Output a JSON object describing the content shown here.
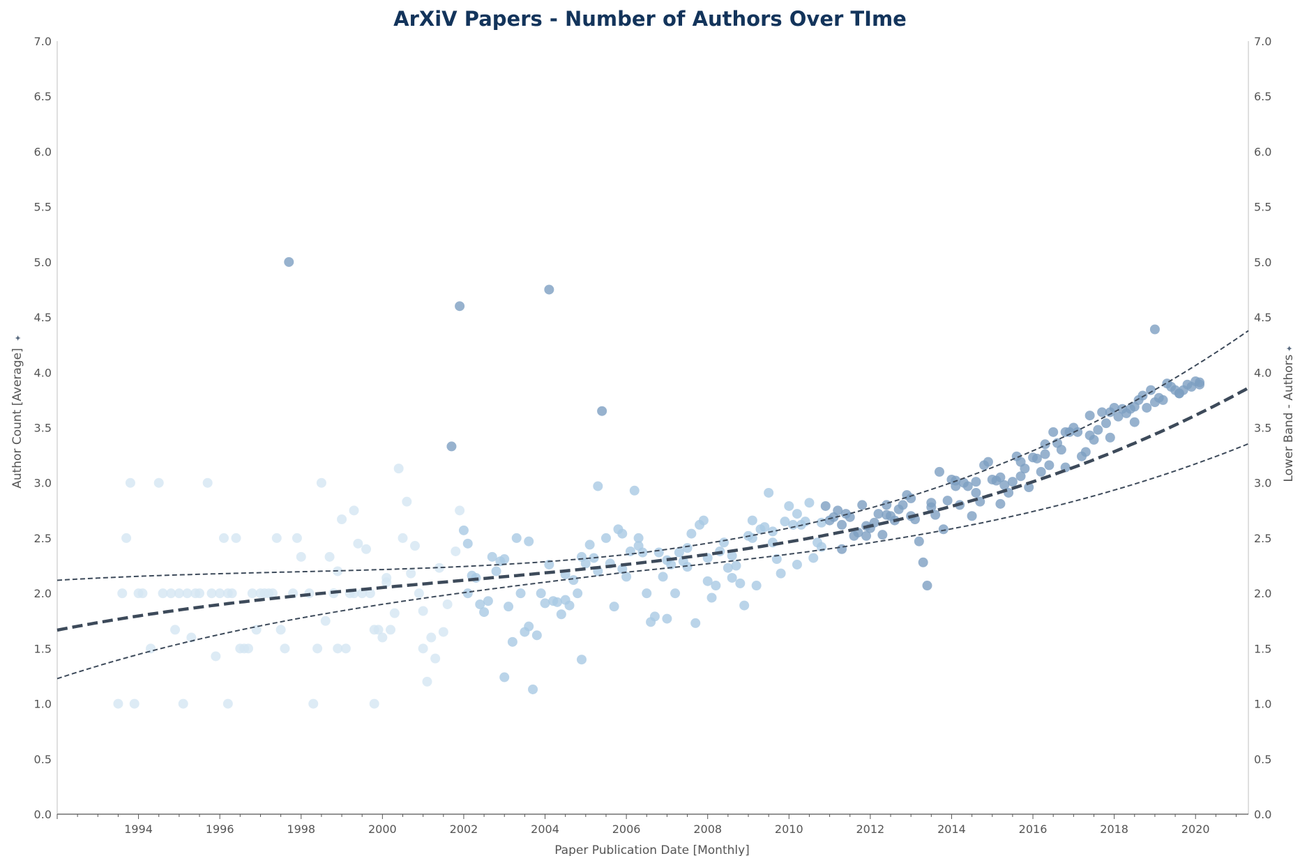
{
  "chart_data": {
    "type": "scatter",
    "title": "ArXiV Papers - Number of Authors Over TIme",
    "xlabel": "Paper Publication Date [Monthly]",
    "ylabel": "Author Count [Average]",
    "ylabel_right": "Lower Band - Authors",
    "xlim": [
      1992.0,
      2021.3
    ],
    "ylim": [
      0,
      7.0
    ],
    "x_ticks": [
      "1994",
      "1996",
      "1998",
      "2000",
      "2002",
      "2004",
      "2006",
      "2008",
      "2010",
      "2012",
      "2014",
      "2016",
      "2018",
      "2020"
    ],
    "y_ticks": [
      "0.0",
      "0.5",
      "1.0",
      "1.5",
      "2.0",
      "2.5",
      "3.0",
      "3.5",
      "4.0",
      "4.5",
      "5.0",
      "5.5",
      "6.0",
      "6.5",
      "7.0"
    ],
    "colors": {
      "light": "#d4e6f3",
      "mid": "#a9c9e3",
      "dark": "#7d9fc2",
      "trend": "#3d4a5a",
      "title": "#13345b",
      "axis": "#bfbfbf",
      "text": "#555555"
    },
    "points": [
      [
        1993.5,
        1.0
      ],
      [
        1993.6,
        2.0
      ],
      [
        1993.7,
        2.5
      ],
      [
        1993.8,
        3.0
      ],
      [
        1993.9,
        1.0
      ],
      [
        1994.0,
        2.0
      ],
      [
        1994.1,
        2.0
      ],
      [
        1994.3,
        1.5
      ],
      [
        1994.5,
        3.0
      ],
      [
        1994.6,
        2.0
      ],
      [
        1994.8,
        2.0
      ],
      [
        1994.9,
        1.67
      ],
      [
        1995.0,
        2.0
      ],
      [
        1995.1,
        1.0
      ],
      [
        1995.2,
        2.0
      ],
      [
        1995.3,
        1.6
      ],
      [
        1995.4,
        2.0
      ],
      [
        1995.5,
        2.0
      ],
      [
        1995.7,
        3.0
      ],
      [
        1995.8,
        2.0
      ],
      [
        1995.9,
        1.43
      ],
      [
        1996.0,
        2.0
      ],
      [
        1996.1,
        2.5
      ],
      [
        1996.2,
        2.0
      ],
      [
        1996.2,
        1.0
      ],
      [
        1996.3,
        2.0
      ],
      [
        1996.4,
        2.5
      ],
      [
        1996.5,
        1.5
      ],
      [
        1996.6,
        1.5
      ],
      [
        1996.7,
        1.5
      ],
      [
        1996.8,
        2.0
      ],
      [
        1996.9,
        1.67
      ],
      [
        1997.0,
        2.0
      ],
      [
        1997.1,
        2.0
      ],
      [
        1997.2,
        2.0
      ],
      [
        1997.3,
        2.0
      ],
      [
        1997.4,
        2.5
      ],
      [
        1997.5,
        1.67
      ],
      [
        1997.6,
        1.5
      ],
      [
        1997.7,
        5.0
      ],
      [
        1997.8,
        2.0
      ],
      [
        1997.9,
        2.5
      ],
      [
        1998.0,
        2.33
      ],
      [
        1998.2,
        2.0
      ],
      [
        1998.3,
        1.0
      ],
      [
        1998.4,
        1.5
      ],
      [
        1998.5,
        3.0
      ],
      [
        1998.6,
        1.75
      ],
      [
        1998.7,
        2.33
      ],
      [
        1998.8,
        2.0
      ],
      [
        1998.9,
        1.5
      ],
      [
        1998.9,
        2.2
      ],
      [
        1999.0,
        2.67
      ],
      [
        1999.1,
        1.5
      ],
      [
        1999.2,
        2.0
      ],
      [
        1999.3,
        2.0
      ],
      [
        1999.3,
        2.75
      ],
      [
        1999.4,
        2.45
      ],
      [
        1999.5,
        2.0
      ],
      [
        1999.6,
        2.4
      ],
      [
        1999.7,
        2.0
      ],
      [
        1999.8,
        1.67
      ],
      [
        1999.8,
        1.0
      ],
      [
        1999.9,
        1.67
      ],
      [
        2000.0,
        1.6
      ],
      [
        2000.1,
        2.14
      ],
      [
        2000.1,
        2.1
      ],
      [
        2000.2,
        1.67
      ],
      [
        2000.3,
        1.82
      ],
      [
        2000.4,
        3.13
      ],
      [
        2000.5,
        2.5
      ],
      [
        2000.6,
        2.83
      ],
      [
        2000.7,
        2.18
      ],
      [
        2000.8,
        2.43
      ],
      [
        2000.9,
        2.0
      ],
      [
        2001.0,
        1.84
      ],
      [
        2001.0,
        1.5
      ],
      [
        2001.1,
        1.2
      ],
      [
        2001.2,
        1.6
      ],
      [
        2001.3,
        1.41
      ],
      [
        2001.4,
        2.23
      ],
      [
        2001.5,
        1.65
      ],
      [
        2001.6,
        1.9
      ],
      [
        2001.7,
        3.33
      ],
      [
        2001.8,
        2.38
      ],
      [
        2001.9,
        2.75
      ],
      [
        2001.9,
        4.6
      ],
      [
        2002.0,
        2.57
      ],
      [
        2002.1,
        2.45
      ],
      [
        2002.1,
        2.0
      ],
      [
        2002.2,
        2.16
      ],
      [
        2002.3,
        2.14
      ],
      [
        2002.4,
        1.9
      ],
      [
        2002.5,
        1.83
      ],
      [
        2002.6,
        1.93
      ],
      [
        2002.7,
        2.33
      ],
      [
        2002.8,
        2.2
      ],
      [
        2002.9,
        2.29
      ],
      [
        2003.0,
        2.31
      ],
      [
        2003.0,
        1.24
      ],
      [
        2003.1,
        1.88
      ],
      [
        2003.2,
        1.56
      ],
      [
        2003.3,
        2.5
      ],
      [
        2003.4,
        2.0
      ],
      [
        2003.5,
        1.65
      ],
      [
        2003.6,
        2.47
      ],
      [
        2003.6,
        1.7
      ],
      [
        2003.7,
        1.13
      ],
      [
        2003.8,
        1.62
      ],
      [
        2003.9,
        2.0
      ],
      [
        2004.0,
        1.91
      ],
      [
        2004.1,
        2.26
      ],
      [
        2004.1,
        4.75
      ],
      [
        2004.2,
        1.93
      ],
      [
        2004.3,
        1.92
      ],
      [
        2004.4,
        1.81
      ],
      [
        2004.5,
        1.94
      ],
      [
        2004.5,
        2.17
      ],
      [
        2004.6,
        1.89
      ],
      [
        2004.7,
        2.12
      ],
      [
        2004.8,
        2.0
      ],
      [
        2004.9,
        2.33
      ],
      [
        2004.9,
        1.4
      ],
      [
        2005.0,
        2.27
      ],
      [
        2005.1,
        2.44
      ],
      [
        2005.2,
        2.32
      ],
      [
        2005.3,
        2.2
      ],
      [
        2005.3,
        2.97
      ],
      [
        2005.4,
        3.65
      ],
      [
        2005.5,
        2.5
      ],
      [
        2005.6,
        2.27
      ],
      [
        2005.7,
        1.88
      ],
      [
        2005.8,
        2.58
      ],
      [
        2005.9,
        2.22
      ],
      [
        2005.9,
        2.54
      ],
      [
        2006.0,
        2.15
      ],
      [
        2006.1,
        2.38
      ],
      [
        2006.2,
        2.93
      ],
      [
        2006.3,
        2.43
      ],
      [
        2006.3,
        2.5
      ],
      [
        2006.4,
        2.37
      ],
      [
        2006.5,
        2.0
      ],
      [
        2006.6,
        1.74
      ],
      [
        2006.7,
        1.79
      ],
      [
        2006.8,
        2.37
      ],
      [
        2006.9,
        2.15
      ],
      [
        2007.0,
        2.3
      ],
      [
        2007.0,
        1.77
      ],
      [
        2007.1,
        2.26
      ],
      [
        2007.2,
        2.0
      ],
      [
        2007.3,
        2.37
      ],
      [
        2007.4,
        2.29
      ],
      [
        2007.5,
        2.24
      ],
      [
        2007.5,
        2.41
      ],
      [
        2007.6,
        2.54
      ],
      [
        2007.7,
        1.73
      ],
      [
        2007.8,
        2.62
      ],
      [
        2007.9,
        2.66
      ],
      [
        2008.0,
        2.11
      ],
      [
        2008.0,
        2.32
      ],
      [
        2008.1,
        1.96
      ],
      [
        2008.2,
        2.07
      ],
      [
        2008.3,
        2.38
      ],
      [
        2008.4,
        2.46
      ],
      [
        2008.5,
        2.23
      ],
      [
        2008.6,
        2.14
      ],
      [
        2008.6,
        2.34
      ],
      [
        2008.7,
        2.25
      ],
      [
        2008.8,
        2.09
      ],
      [
        2008.9,
        1.89
      ],
      [
        2009.0,
        2.52
      ],
      [
        2009.1,
        2.66
      ],
      [
        2009.1,
        2.5
      ],
      [
        2009.2,
        2.07
      ],
      [
        2009.3,
        2.58
      ],
      [
        2009.4,
        2.6
      ],
      [
        2009.5,
        2.91
      ],
      [
        2009.6,
        2.56
      ],
      [
        2009.6,
        2.46
      ],
      [
        2009.7,
        2.31
      ],
      [
        2009.8,
        2.18
      ],
      [
        2009.9,
        2.65
      ],
      [
        2010.0,
        2.79
      ],
      [
        2010.1,
        2.62
      ],
      [
        2010.2,
        2.72
      ],
      [
        2010.2,
        2.26
      ],
      [
        2010.3,
        2.62
      ],
      [
        2010.4,
        2.65
      ],
      [
        2010.5,
        2.82
      ],
      [
        2010.6,
        2.32
      ],
      [
        2010.7,
        2.46
      ],
      [
        2010.8,
        2.64
      ],
      [
        2010.8,
        2.42
      ],
      [
        2010.9,
        2.79
      ],
      [
        2011.0,
        2.66
      ],
      [
        2011.1,
        2.69
      ],
      [
        2011.2,
        2.75
      ],
      [
        2011.3,
        2.62
      ],
      [
        2011.3,
        2.4
      ],
      [
        2011.4,
        2.72
      ],
      [
        2011.5,
        2.69
      ],
      [
        2011.6,
        2.52
      ],
      [
        2011.7,
        2.55
      ],
      [
        2011.8,
        2.8
      ],
      [
        2011.9,
        2.52
      ],
      [
        2011.9,
        2.61
      ],
      [
        2012.0,
        2.59
      ],
      [
        2012.1,
        2.64
      ],
      [
        2012.2,
        2.72
      ],
      [
        2012.3,
        2.53
      ],
      [
        2012.4,
        2.8
      ],
      [
        2012.4,
        2.71
      ],
      [
        2012.5,
        2.7
      ],
      [
        2012.6,
        2.66
      ],
      [
        2012.7,
        2.76
      ],
      [
        2012.8,
        2.8
      ],
      [
        2012.9,
        2.89
      ],
      [
        2013.0,
        2.86
      ],
      [
        2013.0,
        2.7
      ],
      [
        2013.1,
        2.67
      ],
      [
        2013.2,
        2.47
      ],
      [
        2013.3,
        2.28
      ],
      [
        2013.4,
        2.07
      ],
      [
        2013.5,
        2.78
      ],
      [
        2013.5,
        2.82
      ],
      [
        2013.6,
        2.71
      ],
      [
        2013.7,
        3.1
      ],
      [
        2013.8,
        2.58
      ],
      [
        2013.9,
        2.84
      ],
      [
        2014.0,
        3.03
      ],
      [
        2014.1,
        2.97
      ],
      [
        2014.1,
        3.02
      ],
      [
        2014.2,
        2.8
      ],
      [
        2014.3,
        3.0
      ],
      [
        2014.4,
        2.97
      ],
      [
        2014.5,
        2.7
      ],
      [
        2014.6,
        3.01
      ],
      [
        2014.6,
        2.91
      ],
      [
        2014.7,
        2.83
      ],
      [
        2014.8,
        3.16
      ],
      [
        2014.9,
        3.19
      ],
      [
        2015.0,
        3.03
      ],
      [
        2015.1,
        3.02
      ],
      [
        2015.2,
        2.81
      ],
      [
        2015.2,
        3.05
      ],
      [
        2015.3,
        2.98
      ],
      [
        2015.4,
        2.91
      ],
      [
        2015.5,
        3.01
      ],
      [
        2015.6,
        3.24
      ],
      [
        2015.7,
        3.06
      ],
      [
        2015.7,
        3.19
      ],
      [
        2015.8,
        3.13
      ],
      [
        2015.9,
        2.96
      ],
      [
        2016.0,
        3.23
      ],
      [
        2016.1,
        3.22
      ],
      [
        2016.2,
        3.1
      ],
      [
        2016.3,
        3.26
      ],
      [
        2016.3,
        3.35
      ],
      [
        2016.4,
        3.16
      ],
      [
        2016.5,
        3.46
      ],
      [
        2016.6,
        3.36
      ],
      [
        2016.7,
        3.3
      ],
      [
        2016.8,
        3.14
      ],
      [
        2016.8,
        3.46
      ],
      [
        2016.9,
        3.46
      ],
      [
        2017.0,
        3.5
      ],
      [
        2017.1,
        3.46
      ],
      [
        2017.2,
        3.24
      ],
      [
        2017.3,
        3.28
      ],
      [
        2017.4,
        3.61
      ],
      [
        2017.4,
        3.43
      ],
      [
        2017.5,
        3.39
      ],
      [
        2017.6,
        3.48
      ],
      [
        2017.7,
        3.64
      ],
      [
        2017.8,
        3.54
      ],
      [
        2017.9,
        3.64
      ],
      [
        2017.9,
        3.41
      ],
      [
        2018.0,
        3.68
      ],
      [
        2018.1,
        3.6
      ],
      [
        2018.2,
        3.67
      ],
      [
        2018.3,
        3.63
      ],
      [
        2018.4,
        3.67
      ],
      [
        2018.5,
        3.69
      ],
      [
        2018.5,
        3.55
      ],
      [
        2018.6,
        3.75
      ],
      [
        2018.7,
        3.79
      ],
      [
        2018.8,
        3.68
      ],
      [
        2018.9,
        3.84
      ],
      [
        2019.0,
        4.39
      ],
      [
        2019.0,
        3.73
      ],
      [
        2019.1,
        3.77
      ],
      [
        2019.2,
        3.75
      ],
      [
        2019.3,
        3.9
      ],
      [
        2019.4,
        3.87
      ],
      [
        2019.5,
        3.84
      ],
      [
        2019.6,
        3.81
      ],
      [
        2019.6,
        3.81
      ],
      [
        2019.7,
        3.84
      ],
      [
        2019.8,
        3.89
      ],
      [
        2019.9,
        3.87
      ],
      [
        2020.0,
        3.92
      ],
      [
        2020.1,
        3.89
      ],
      [
        2020.1,
        3.91
      ]
    ],
    "trend": {
      "type": "cubic",
      "x0": 2006,
      "coef": [
        2.261,
        0.04125,
        0.00193,
        0.000144
      ]
    },
    "band": {
      "upper_offset": [
        0.09,
        0.002,
        0.0017
      ],
      "lower_offset": [
        0.07,
        0.004,
        0.0016
      ]
    }
  }
}
